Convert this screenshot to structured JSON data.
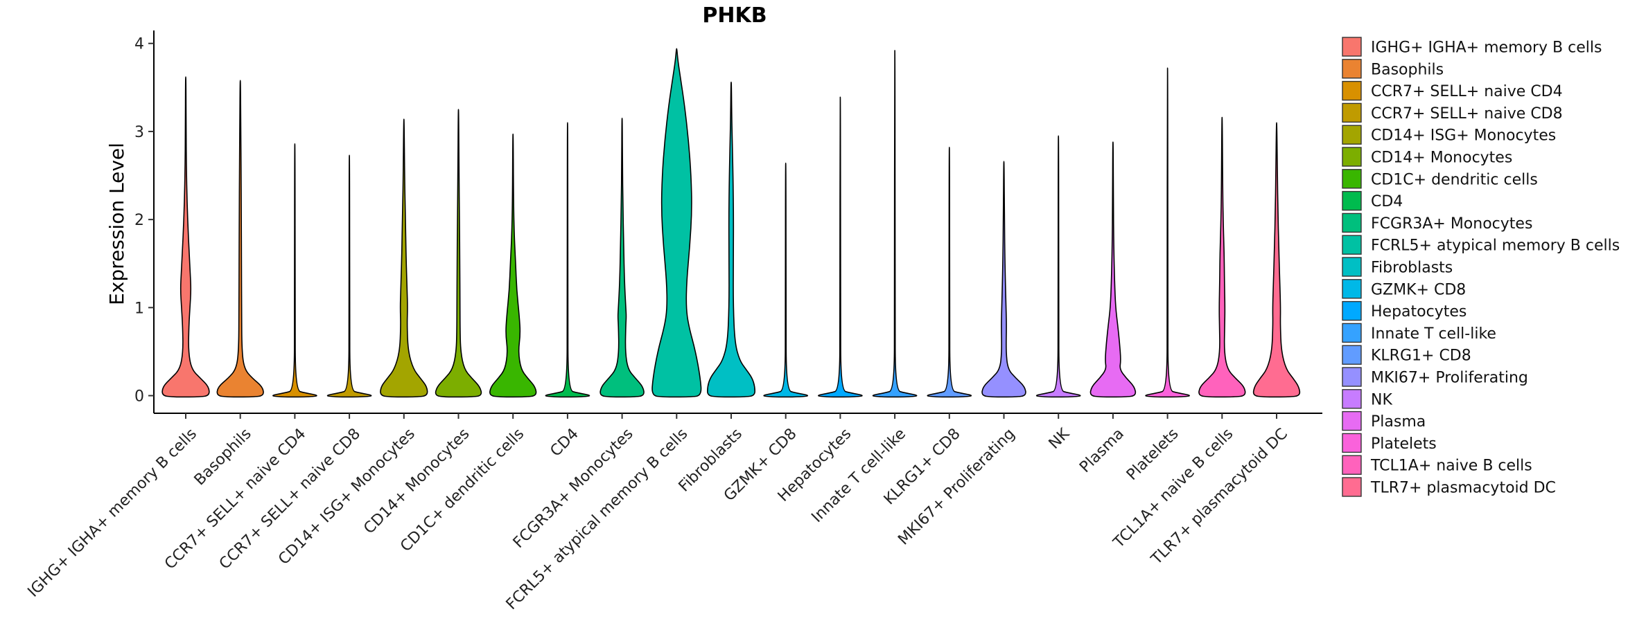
{
  "chart_data": {
    "type": "violin",
    "title": "PHKB",
    "xlabel": "",
    "ylabel": "Expression Level",
    "ylim": [
      -0.2,
      4.1
    ],
    "yticks": [
      {
        "value": 0,
        "label": "0"
      },
      {
        "value": 1,
        "label": "1"
      },
      {
        "value": 2,
        "label": "2"
      },
      {
        "value": 3,
        "label": "3"
      },
      {
        "value": 4,
        "label": "4"
      }
    ],
    "legend_position": "right",
    "series": [
      {
        "name": "IGHG+ IGHA+ memory B cells",
        "legend_label": " IGHG+ IGHA+ memory B cells",
        "color": "#F8766D",
        "max": 3.62,
        "profile": [
          [
            0,
            0.9
          ],
          [
            0.1,
            0.88
          ],
          [
            0.2,
            0.55
          ],
          [
            0.3,
            0.22
          ],
          [
            0.5,
            0.1
          ],
          [
            0.8,
            0.12
          ],
          [
            1.0,
            0.16
          ],
          [
            1.2,
            0.2
          ],
          [
            1.4,
            0.17
          ],
          [
            1.8,
            0.1
          ],
          [
            2.2,
            0.05
          ],
          [
            2.6,
            0.025
          ],
          [
            3.0,
            0.014
          ],
          [
            3.62,
            0.008
          ]
        ]
      },
      {
        "name": "Basophils",
        "color": "#EA8331",
        "max": 3.58,
        "profile": [
          [
            0,
            0.9
          ],
          [
            0.1,
            0.85
          ],
          [
            0.2,
            0.45
          ],
          [
            0.3,
            0.16
          ],
          [
            0.5,
            0.06
          ],
          [
            1.0,
            0.05
          ],
          [
            1.5,
            0.045
          ],
          [
            2.0,
            0.04
          ],
          [
            2.6,
            0.03
          ],
          [
            3.0,
            0.02
          ],
          [
            3.58,
            0.008
          ]
        ]
      },
      {
        "name": "CCR7+ SELL+ naive CD4",
        "color": "#D89000",
        "max": 2.86,
        "profile": [
          [
            0,
            0.95
          ],
          [
            0.03,
            0.4
          ],
          [
            0.06,
            0.02
          ],
          [
            1.0,
            0.012
          ],
          [
            2.86,
            0.008
          ]
        ]
      },
      {
        "name": "CCR7+ SELL+ naive CD8",
        "color": "#C09B00",
        "max": 2.73,
        "profile": [
          [
            0,
            0.95
          ],
          [
            0.03,
            0.4
          ],
          [
            0.06,
            0.02
          ],
          [
            1.0,
            0.012
          ],
          [
            2.73,
            0.008
          ]
        ]
      },
      {
        "name": "CD14+ ISG+ Monocytes",
        "color": "#A3A500",
        "max": 3.14,
        "profile": [
          [
            0,
            0.9
          ],
          [
            0.1,
            0.88
          ],
          [
            0.2,
            0.62
          ],
          [
            0.3,
            0.36
          ],
          [
            0.5,
            0.16
          ],
          [
            0.8,
            0.12
          ],
          [
            1.0,
            0.14
          ],
          [
            1.2,
            0.12
          ],
          [
            1.6,
            0.08
          ],
          [
            2.0,
            0.06
          ],
          [
            2.4,
            0.03
          ],
          [
            3.14,
            0.008
          ]
        ]
      },
      {
        "name": "CD14+ Monocytes",
        "color": "#7CAE00",
        "max": 3.25,
        "profile": [
          [
            0,
            0.9
          ],
          [
            0.1,
            0.82
          ],
          [
            0.2,
            0.5
          ],
          [
            0.3,
            0.22
          ],
          [
            0.5,
            0.08
          ],
          [
            0.8,
            0.06
          ],
          [
            1.0,
            0.06
          ],
          [
            1.5,
            0.05
          ],
          [
            2.0,
            0.04
          ],
          [
            2.5,
            0.02
          ],
          [
            3.25,
            0.008
          ]
        ]
      },
      {
        "name": "CD1C+ dendritic cells",
        "color": "#39B600",
        "max": 2.97,
        "profile": [
          [
            0,
            0.9
          ],
          [
            0.1,
            0.85
          ],
          [
            0.2,
            0.55
          ],
          [
            0.3,
            0.3
          ],
          [
            0.5,
            0.2
          ],
          [
            0.7,
            0.28
          ],
          [
            0.9,
            0.24
          ],
          [
            1.2,
            0.14
          ],
          [
            1.5,
            0.1
          ],
          [
            1.8,
            0.05
          ],
          [
            2.2,
            0.02
          ],
          [
            2.97,
            0.008
          ]
        ]
      },
      {
        "name": "CD4",
        "color": "#00BB4E",
        "max": 3.1,
        "profile": [
          [
            0,
            0.95
          ],
          [
            0.03,
            0.4
          ],
          [
            0.06,
            0.02
          ],
          [
            1.0,
            0.012
          ],
          [
            3.1,
            0.008
          ]
        ]
      },
      {
        "name": "FCGR3A+ Monocytes",
        "color": "#00BF7D",
        "max": 3.15,
        "profile": [
          [
            0,
            0.85
          ],
          [
            0.1,
            0.8
          ],
          [
            0.2,
            0.5
          ],
          [
            0.3,
            0.22
          ],
          [
            0.5,
            0.12
          ],
          [
            0.8,
            0.14
          ],
          [
            0.9,
            0.16
          ],
          [
            1.0,
            0.14
          ],
          [
            1.3,
            0.09
          ],
          [
            1.7,
            0.06
          ],
          [
            2.2,
            0.03
          ],
          [
            2.6,
            0.015
          ],
          [
            3.15,
            0.008
          ]
        ]
      },
      {
        "name": "FCRL5+ atypical memory B cells",
        "color": "#00C1A3",
        "max": 3.94,
        "profile": [
          [
            0,
            0.95
          ],
          [
            0.2,
            0.9
          ],
          [
            0.5,
            0.72
          ],
          [
            0.8,
            0.45
          ],
          [
            1.0,
            0.36
          ],
          [
            1.3,
            0.38
          ],
          [
            1.7,
            0.5
          ],
          [
            2.1,
            0.58
          ],
          [
            2.5,
            0.55
          ],
          [
            2.9,
            0.45
          ],
          [
            3.3,
            0.3
          ],
          [
            3.6,
            0.15
          ],
          [
            3.8,
            0.05
          ],
          [
            3.94,
            0.008
          ]
        ]
      },
      {
        "name": "Fibroblasts",
        "color": "#00BFC4",
        "max": 3.56,
        "profile": [
          [
            0,
            0.9
          ],
          [
            0.1,
            0.9
          ],
          [
            0.2,
            0.8
          ],
          [
            0.3,
            0.56
          ],
          [
            0.4,
            0.32
          ],
          [
            0.6,
            0.14
          ],
          [
            1.0,
            0.08
          ],
          [
            1.5,
            0.08
          ],
          [
            2.0,
            0.09
          ],
          [
            2.5,
            0.07
          ],
          [
            2.9,
            0.04
          ],
          [
            3.2,
            0.02
          ],
          [
            3.56,
            0.008
          ]
        ]
      },
      {
        "name": "GZMK+ CD8",
        "color": "#00B8E7",
        "max": 2.64,
        "profile": [
          [
            0,
            0.95
          ],
          [
            0.03,
            0.4
          ],
          [
            0.06,
            0.02
          ],
          [
            1.0,
            0.012
          ],
          [
            2.64,
            0.008
          ]
        ]
      },
      {
        "name": "Hepatocytes",
        "color": "#00A9FF",
        "max": 3.39,
        "profile": [
          [
            0,
            0.95
          ],
          [
            0.03,
            0.4
          ],
          [
            0.06,
            0.02
          ],
          [
            1.0,
            0.012
          ],
          [
            3.39,
            0.008
          ]
        ]
      },
      {
        "name": "Innate T cell-like",
        "color": "#35A2FF",
        "max": 3.92,
        "profile": [
          [
            0,
            0.95
          ],
          [
            0.03,
            0.4
          ],
          [
            0.06,
            0.02
          ],
          [
            1.0,
            0.012
          ],
          [
            3.92,
            0.008
          ]
        ]
      },
      {
        "name": "KLRG1+ CD8",
        "color": "#619CFF",
        "max": 2.82,
        "profile": [
          [
            0,
            0.95
          ],
          [
            0.03,
            0.4
          ],
          [
            0.06,
            0.02
          ],
          [
            1.0,
            0.012
          ],
          [
            2.82,
            0.008
          ]
        ]
      },
      {
        "name": "MKI67+ Proliferating",
        "color": "#9590FF",
        "max": 2.66,
        "profile": [
          [
            0,
            0.85
          ],
          [
            0.1,
            0.8
          ],
          [
            0.2,
            0.45
          ],
          [
            0.3,
            0.15
          ],
          [
            0.5,
            0.08
          ],
          [
            0.8,
            0.1
          ],
          [
            1.0,
            0.08
          ],
          [
            1.5,
            0.04
          ],
          [
            2.0,
            0.02
          ],
          [
            2.66,
            0.008
          ]
        ]
      },
      {
        "name": "NK",
        "color": "#C77CFF",
        "max": 2.95,
        "profile": [
          [
            0,
            0.95
          ],
          [
            0.03,
            0.4
          ],
          [
            0.06,
            0.02
          ],
          [
            1.0,
            0.012
          ],
          [
            2.95,
            0.008
          ]
        ]
      },
      {
        "name": "Plasma",
        "color": "#E76BF3",
        "max": 2.88,
        "profile": [
          [
            0,
            0.88
          ],
          [
            0.1,
            0.82
          ],
          [
            0.2,
            0.5
          ],
          [
            0.3,
            0.25
          ],
          [
            0.4,
            0.3
          ],
          [
            0.6,
            0.25
          ],
          [
            0.8,
            0.18
          ],
          [
            1.0,
            0.1
          ],
          [
            1.3,
            0.06
          ],
          [
            1.7,
            0.03
          ],
          [
            2.2,
            0.015
          ],
          [
            2.88,
            0.008
          ]
        ]
      },
      {
        "name": "Platelets",
        "color": "#FA62DB",
        "max": 3.72,
        "profile": [
          [
            0,
            0.95
          ],
          [
            0.03,
            0.4
          ],
          [
            0.06,
            0.02
          ],
          [
            1.0,
            0.012
          ],
          [
            3.72,
            0.008
          ]
        ]
      },
      {
        "name": "TCL1A+ naive B cells",
        "color": "#FF62BC",
        "max": 3.16,
        "profile": [
          [
            0,
            0.9
          ],
          [
            0.1,
            0.85
          ],
          [
            0.2,
            0.5
          ],
          [
            0.3,
            0.2
          ],
          [
            0.5,
            0.08
          ],
          [
            0.8,
            0.1
          ],
          [
            1.0,
            0.11
          ],
          [
            1.3,
            0.09
          ],
          [
            1.6,
            0.08
          ],
          [
            1.9,
            0.05
          ],
          [
            2.3,
            0.025
          ],
          [
            3.16,
            0.008
          ]
        ]
      },
      {
        "name": "TLR7+ plasmacytoid DC",
        "color": "#FF6C91",
        "max": 3.1,
        "profile": [
          [
            0,
            0.9
          ],
          [
            0.1,
            0.85
          ],
          [
            0.2,
            0.62
          ],
          [
            0.3,
            0.36
          ],
          [
            0.5,
            0.18
          ],
          [
            0.8,
            0.14
          ],
          [
            1.0,
            0.15
          ],
          [
            1.3,
            0.12
          ],
          [
            1.7,
            0.08
          ],
          [
            2.1,
            0.05
          ],
          [
            2.5,
            0.03
          ],
          [
            3.1,
            0.008
          ]
        ]
      }
    ]
  }
}
